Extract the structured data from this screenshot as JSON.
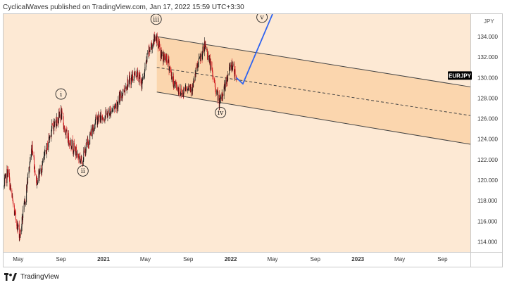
{
  "header": {
    "publisher_line": "CyclicalWaves published on TradingView.com, Jan 17, 2022 15:59 UTC+3:30"
  },
  "footer": {
    "brand": "TradingView",
    "logo_icon": "tradingview-logo-icon"
  },
  "colors": {
    "background": "#fde9d4",
    "channel_fill": "#fbd6ae",
    "up_candle": "#161616",
    "down_candle": "#d0141a",
    "projection": "#2f64f0",
    "symbol_badge": "#000000",
    "axis_text": "#333333"
  },
  "chart_data": {
    "type": "candlestick",
    "symbol": "EURJPY",
    "currency": "JPY",
    "y_axis": {
      "range": [
        113,
        136.2
      ],
      "ticks": [
        "114.000",
        "116.000",
        "118.000",
        "120.000",
        "122.000",
        "124.000",
        "126.000",
        "128.000",
        "130.000",
        "132.000",
        "134.000"
      ]
    },
    "x_axis": {
      "range": [
        "2020-03-20",
        "2023-11-20"
      ],
      "ticks": [
        {
          "label": "May",
          "date": "2020-05-01"
        },
        {
          "label": "Sep",
          "date": "2020-09-01"
        },
        {
          "label": "2021",
          "date": "2021-01-01",
          "bold": true
        },
        {
          "label": "May",
          "date": "2021-05-01"
        },
        {
          "label": "Sep",
          "date": "2021-09-01"
        },
        {
          "label": "2022",
          "date": "2022-01-01",
          "bold": true
        },
        {
          "label": "May",
          "date": "2022-05-01"
        },
        {
          "label": "Sep",
          "date": "2022-09-01"
        },
        {
          "label": "2023",
          "date": "2023-01-01",
          "bold": true
        },
        {
          "label": "May",
          "date": "2023-05-01"
        },
        {
          "label": "Sep",
          "date": "2023-09-01"
        }
      ]
    },
    "price_path": [
      [
        "2020-03-20",
        119.3
      ],
      [
        "2020-04-01",
        120.9
      ],
      [
        "2020-04-20",
        116.8
      ],
      [
        "2020-05-06",
        114.6
      ],
      [
        "2020-05-20",
        117.8
      ],
      [
        "2020-06-10",
        123.5
      ],
      [
        "2020-06-22",
        119.8
      ],
      [
        "2020-07-10",
        121.5
      ],
      [
        "2020-08-05",
        125.0
      ],
      [
        "2020-09-01",
        126.5
      ],
      [
        "2020-09-15",
        124.5
      ],
      [
        "2020-10-10",
        123.0
      ],
      [
        "2020-10-30",
        121.8
      ],
      [
        "2020-11-20",
        124.0
      ],
      [
        "2020-12-10",
        125.9
      ],
      [
        "2021-01-08",
        126.3
      ],
      [
        "2021-02-10",
        127.5
      ],
      [
        "2021-03-10",
        129.5
      ],
      [
        "2021-04-05",
        130.5
      ],
      [
        "2021-04-22",
        129.4
      ],
      [
        "2021-05-10",
        132.5
      ],
      [
        "2021-06-01",
        134.1
      ],
      [
        "2021-06-15",
        132.2
      ],
      [
        "2021-07-05",
        131.6
      ],
      [
        "2021-07-20",
        129.6
      ],
      [
        "2021-08-15",
        128.4
      ],
      [
        "2021-08-25",
        129.2
      ],
      [
        "2021-09-15",
        129.1
      ],
      [
        "2021-09-25",
        130.8
      ],
      [
        "2021-10-20",
        133.2
      ],
      [
        "2021-11-01",
        131.6
      ],
      [
        "2021-11-20",
        128.8
      ],
      [
        "2021-12-01",
        127.4
      ],
      [
        "2021-12-10",
        128.6
      ],
      [
        "2021-12-25",
        130.4
      ],
      [
        "2022-01-04",
        131.4
      ],
      [
        "2022-01-17",
        130.2
      ]
    ],
    "channel": {
      "upper": [
        [
          "2021-06-03",
          134.0
        ],
        [
          "2023-11-20",
          129.1
        ]
      ],
      "mid": [
        [
          "2021-06-03",
          131.0
        ],
        [
          "2023-11-20",
          126.3
        ]
      ],
      "lower": [
        [
          "2021-06-03",
          128.6
        ],
        [
          "2023-11-20",
          123.5
        ]
      ]
    },
    "projection": [
      [
        "2022-01-17",
        130.0
      ],
      [
        "2022-02-05",
        129.4
      ],
      [
        "2022-05-01",
        136.2
      ]
    ],
    "wave_labels": [
      {
        "label": "i",
        "date": "2020-09-01",
        "price": 128.4
      },
      {
        "label": "ii",
        "date": "2020-11-03",
        "price": 120.9
      },
      {
        "label": "iii",
        "date": "2021-06-01",
        "price": 135.7
      },
      {
        "label": "iv",
        "date": "2021-12-03",
        "price": 126.6
      },
      {
        "label": "v",
        "date": "2022-04-01",
        "price": 135.9
      }
    ],
    "last_price_label": "EURJPY",
    "last_price": 130.2
  }
}
